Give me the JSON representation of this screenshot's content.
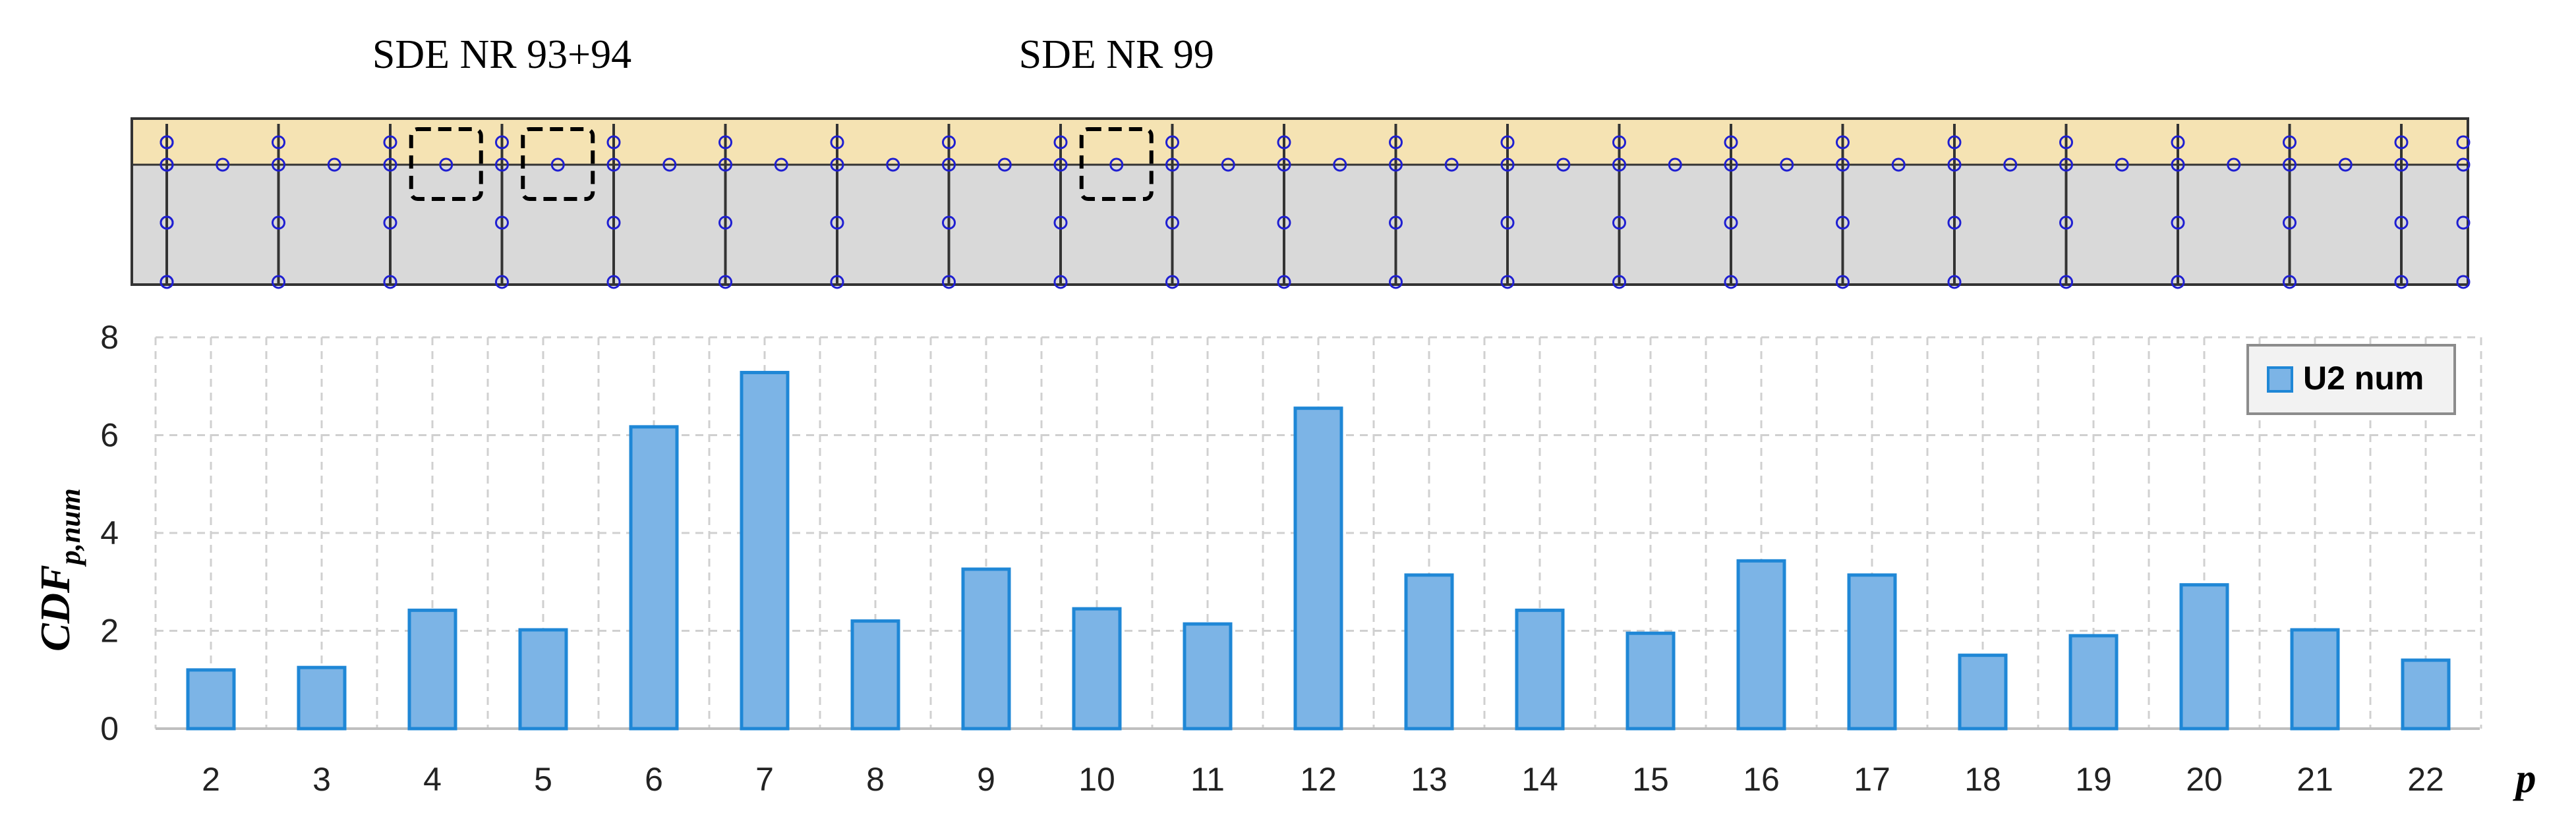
{
  "diagram": {
    "annotations": [
      {
        "text": "SDE NR 93+94",
        "positions": [
          6,
          7
        ]
      },
      {
        "text": "SDE NR 99",
        "positions": [
          12
        ]
      }
    ],
    "colors": {
      "top_strip": "#f5e3b3",
      "body": "#d9d9d9",
      "border": "#333333",
      "node": "#1f1fd1",
      "dash_box": "#000000"
    }
  },
  "chart_data": {
    "type": "bar",
    "categories": [
      "2",
      "3",
      "4",
      "5",
      "6",
      "7",
      "8",
      "9",
      "10",
      "11",
      "12",
      "13",
      "14",
      "15",
      "16",
      "17",
      "18",
      "19",
      "20",
      "21",
      "22"
    ],
    "series": [
      {
        "name": "U2 num",
        "values": [
          1.2,
          1.25,
          2.42,
          2.02,
          6.17,
          7.28,
          2.2,
          3.26,
          2.45,
          2.14,
          6.55,
          3.14,
          2.42,
          1.95,
          3.43,
          3.14,
          1.5,
          1.9,
          2.94,
          2.02,
          1.4
        ]
      }
    ],
    "title": "",
    "xlabel": "p",
    "ylabel": "CDF",
    "ylabel_subscript": "p,num",
    "ylim": [
      0,
      8
    ],
    "yticks": [
      "0",
      "2",
      "4",
      "6",
      "8"
    ],
    "grid": true,
    "legend": "top-right",
    "colors": {
      "bar_fill": "#7cb4e6",
      "bar_stroke": "#1f87d6",
      "grid": "#d0d0d0"
    }
  }
}
